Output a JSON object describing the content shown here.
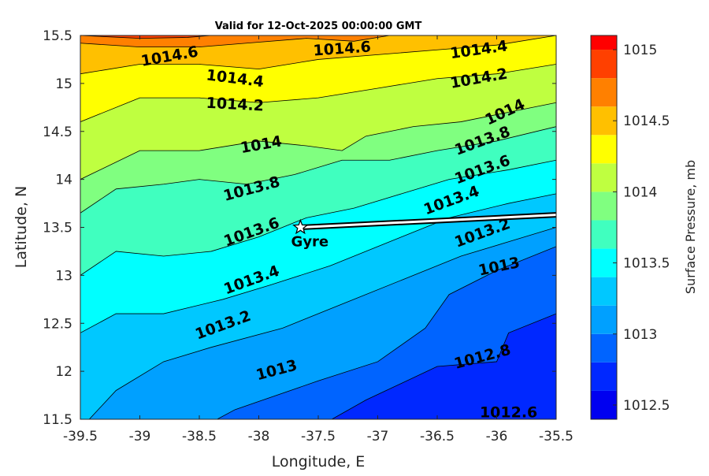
{
  "chart_data": {
    "type": "contour",
    "title": "Valid for 12-Oct-2025 00:00:00 GMT",
    "xlabel": "Longitude, E",
    "ylabel": "Latitude, N",
    "xlim": [
      -39.5,
      -35.5
    ],
    "ylim": [
      11.5,
      15.5
    ],
    "x_ticks": [
      "-39.5",
      "-39",
      "-38.5",
      "-38",
      "-37.5",
      "-37",
      "-36.5",
      "-36",
      "-35.5"
    ],
    "y_ticks": [
      "11.5",
      "12",
      "12.5",
      "13",
      "13.5",
      "14",
      "14.5",
      "15",
      "15.5"
    ],
    "colorbar": {
      "label": "Surface Pressure, mb",
      "range": [
        1012.4,
        1015.1
      ],
      "ticks": [
        "1012.5",
        "1013",
        "1013.5",
        "1014",
        "1014.5",
        "1015"
      ],
      "levels": [
        1012.4,
        1012.6,
        1012.8,
        1013.0,
        1013.2,
        1013.4,
        1013.6,
        1013.8,
        1014.0,
        1014.2,
        1014.4,
        1014.6,
        1014.8,
        1015.0
      ],
      "colors": [
        "#0000b4",
        "#0000f0",
        "#0028ff",
        "#0064ff",
        "#00a0ff",
        "#00c8ff",
        "#00ffff",
        "#40ffbf",
        "#80ff80",
        "#bfff40",
        "#ffff00",
        "#ffc000",
        "#ff8000",
        "#ff4000",
        "#ff0000"
      ]
    },
    "contours": [
      {
        "level": 1012.6,
        "label": "1012.6",
        "points": [
          [
            -39.5,
            11.3
          ],
          [
            -36.5,
            11.3
          ],
          [
            -36.0,
            11.45
          ],
          [
            -35.5,
            11.5
          ]
        ]
      },
      {
        "level": 1012.8,
        "label": "1012.8",
        "points": [
          [
            -39.5,
            11.3
          ],
          [
            -37.6,
            11.35
          ],
          [
            -37.1,
            11.7
          ],
          [
            -36.5,
            12.05
          ],
          [
            -36.0,
            12.1
          ],
          [
            -35.9,
            12.4
          ],
          [
            -35.5,
            12.6
          ]
        ]
      },
      {
        "level": 1013.0,
        "label": "1013",
        "points": [
          [
            -39.5,
            11.3
          ],
          [
            -38.5,
            11.4
          ],
          [
            -38.2,
            11.6
          ],
          [
            -37.5,
            11.9
          ],
          [
            -37.0,
            12.1
          ],
          [
            -36.6,
            12.45
          ],
          [
            -36.4,
            12.8
          ],
          [
            -36.0,
            13.05
          ],
          [
            -35.5,
            13.3
          ]
        ]
      },
      {
        "level": 1013.2,
        "label": "1013.2",
        "points": [
          [
            -39.5,
            11.4
          ],
          [
            -39.2,
            11.8
          ],
          [
            -38.8,
            12.1
          ],
          [
            -38.4,
            12.25
          ],
          [
            -37.8,
            12.45
          ],
          [
            -37.3,
            12.7
          ],
          [
            -36.8,
            12.95
          ],
          [
            -36.3,
            13.2
          ],
          [
            -35.9,
            13.35
          ],
          [
            -35.5,
            13.5
          ]
        ]
      },
      {
        "level": 1013.4,
        "label": "1013.4",
        "points": [
          [
            -39.5,
            12.4
          ],
          [
            -39.2,
            12.6
          ],
          [
            -38.8,
            12.6
          ],
          [
            -38.3,
            12.75
          ],
          [
            -37.9,
            12.9
          ],
          [
            -37.4,
            13.1
          ],
          [
            -36.9,
            13.35
          ],
          [
            -36.4,
            13.6
          ],
          [
            -35.9,
            13.75
          ],
          [
            -35.5,
            13.85
          ]
        ]
      },
      {
        "level": 1013.6,
        "label": "1013.6",
        "points": [
          [
            -39.5,
            13.0
          ],
          [
            -39.2,
            13.25
          ],
          [
            -38.8,
            13.2
          ],
          [
            -38.4,
            13.25
          ],
          [
            -38.0,
            13.4
          ],
          [
            -37.6,
            13.6
          ],
          [
            -37.2,
            13.7
          ],
          [
            -36.8,
            13.85
          ],
          [
            -36.4,
            14.0
          ],
          [
            -35.9,
            14.1
          ],
          [
            -35.5,
            14.2
          ]
        ]
      },
      {
        "level": 1013.8,
        "label": "1013.8",
        "points": [
          [
            -39.5,
            13.65
          ],
          [
            -39.2,
            13.9
          ],
          [
            -38.8,
            13.95
          ],
          [
            -38.5,
            14.0
          ],
          [
            -38.1,
            13.95
          ],
          [
            -37.7,
            14.05
          ],
          [
            -37.3,
            14.2
          ],
          [
            -36.9,
            14.2
          ],
          [
            -36.5,
            14.3
          ],
          [
            -36.0,
            14.4
          ],
          [
            -35.5,
            14.55
          ]
        ]
      },
      {
        "level": 1014.0,
        "label": "1014",
        "points": [
          [
            -39.5,
            14.0
          ],
          [
            -39.0,
            14.3
          ],
          [
            -38.5,
            14.3
          ],
          [
            -38.0,
            14.4
          ],
          [
            -37.6,
            14.35
          ],
          [
            -37.3,
            14.3
          ],
          [
            -37.1,
            14.45
          ],
          [
            -36.7,
            14.55
          ],
          [
            -36.3,
            14.6
          ],
          [
            -35.9,
            14.7
          ],
          [
            -35.5,
            14.8
          ]
        ]
      },
      {
        "level": 1014.2,
        "label": "1014.2",
        "points": [
          [
            -39.5,
            14.6
          ],
          [
            -39.0,
            14.85
          ],
          [
            -38.5,
            14.85
          ],
          [
            -38.0,
            14.8
          ],
          [
            -37.5,
            14.85
          ],
          [
            -37.0,
            14.95
          ],
          [
            -36.5,
            15.05
          ],
          [
            -36.0,
            15.1
          ],
          [
            -35.5,
            15.2
          ]
        ]
      },
      {
        "level": 1014.4,
        "label": "1014.4",
        "points": [
          [
            -39.5,
            15.1
          ],
          [
            -39.0,
            15.2
          ],
          [
            -38.5,
            15.2
          ],
          [
            -38.0,
            15.15
          ],
          [
            -37.5,
            15.25
          ],
          [
            -37.0,
            15.3
          ],
          [
            -36.5,
            15.35
          ],
          [
            -36.0,
            15.4
          ],
          [
            -35.5,
            15.5
          ]
        ]
      },
      {
        "level": 1014.6,
        "label": "1014.6",
        "points": [
          [
            -39.5,
            15.42
          ],
          [
            -39.0,
            15.38
          ],
          [
            -38.5,
            15.38
          ],
          [
            -38.0,
            15.43
          ],
          [
            -37.6,
            15.47
          ],
          [
            -37.2,
            15.44
          ],
          [
            -36.9,
            15.5
          ]
        ]
      },
      {
        "level": 1014.8,
        "label": "",
        "points": [
          [
            -39.5,
            15.5
          ],
          [
            -39.0,
            15.47
          ],
          [
            -38.6,
            15.48
          ],
          [
            -38.4,
            15.5
          ]
        ]
      }
    ],
    "contour_labels": [
      {
        "text": "1014.6",
        "x": -38.75,
        "y": 15.28,
        "rot": -10
      },
      {
        "text": "1014.6",
        "x": -37.3,
        "y": 15.36,
        "rot": -4
      },
      {
        "text": "1014.4",
        "x": -36.15,
        "y": 15.35,
        "rot": -8
      },
      {
        "text": "1014.4",
        "x": -38.2,
        "y": 15.05,
        "rot": 7
      },
      {
        "text": "1014.2",
        "x": -36.15,
        "y": 15.05,
        "rot": -10
      },
      {
        "text": "1014.2",
        "x": -38.2,
        "y": 14.78,
        "rot": 3
      },
      {
        "text": "1014",
        "x": -35.93,
        "y": 14.7,
        "rot": -25
      },
      {
        "text": "1014",
        "x": -37.98,
        "y": 14.36,
        "rot": -10
      },
      {
        "text": "1013.8",
        "x": -36.12,
        "y": 14.4,
        "rot": -20
      },
      {
        "text": "1013.8",
        "x": -38.06,
        "y": 13.9,
        "rot": -15
      },
      {
        "text": "1013.6",
        "x": -36.12,
        "y": 14.1,
        "rot": -20
      },
      {
        "text": "1013.6",
        "x": -38.06,
        "y": 13.45,
        "rot": -20
      },
      {
        "text": "1013.4",
        "x": -36.38,
        "y": 13.78,
        "rot": -20
      },
      {
        "text": "1013.4",
        "x": -38.06,
        "y": 12.95,
        "rot": -20
      },
      {
        "text": "1013.2",
        "x": -36.12,
        "y": 13.44,
        "rot": -20
      },
      {
        "text": "1013.2",
        "x": -38.3,
        "y": 12.48,
        "rot": -20
      },
      {
        "text": "1013",
        "x": -35.98,
        "y": 13.09,
        "rot": -12
      },
      {
        "text": "1013",
        "x": -37.85,
        "y": 12.01,
        "rot": -15
      },
      {
        "text": "1012.8",
        "x": -36.12,
        "y": 12.15,
        "rot": -15
      },
      {
        "text": "1012.6",
        "x": -35.9,
        "y": 11.57,
        "rot": 0
      }
    ],
    "track": {
      "points": [
        [
          -37.65,
          13.5
        ],
        [
          -35.5,
          13.63
        ]
      ]
    },
    "marker": {
      "name": "Gyre",
      "lon": -37.65,
      "lat": 13.5
    }
  }
}
